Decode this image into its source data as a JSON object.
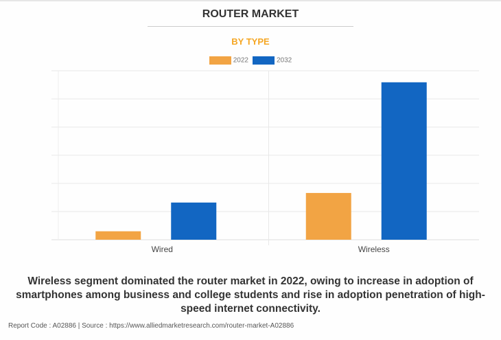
{
  "chart_data": {
    "type": "bar",
    "title": "ROUTER MARKET",
    "subtitle": "BY TYPE",
    "categories": [
      "Wired",
      "Wireless"
    ],
    "series": [
      {
        "name": "2022",
        "color": "#f2a444",
        "values": [
          0.3,
          1.66
        ]
      },
      {
        "name": "2032",
        "color": "#1266c2",
        "values": [
          1.32,
          5.59
        ]
      }
    ],
    "xlabel": "",
    "ylabel": "",
    "ylim": [
      0,
      6
    ],
    "grid": true,
    "legend": "top-center"
  },
  "caption": "Wireless segment dominated the router market in 2022, owing to increase in adoption of smartphones among business and college students and rise in adoption penetration of high-speed internet connectivity.",
  "footer": "Report Code : A02886  |  Source : https://www.alliedmarketresearch.com/router-market-A02886"
}
